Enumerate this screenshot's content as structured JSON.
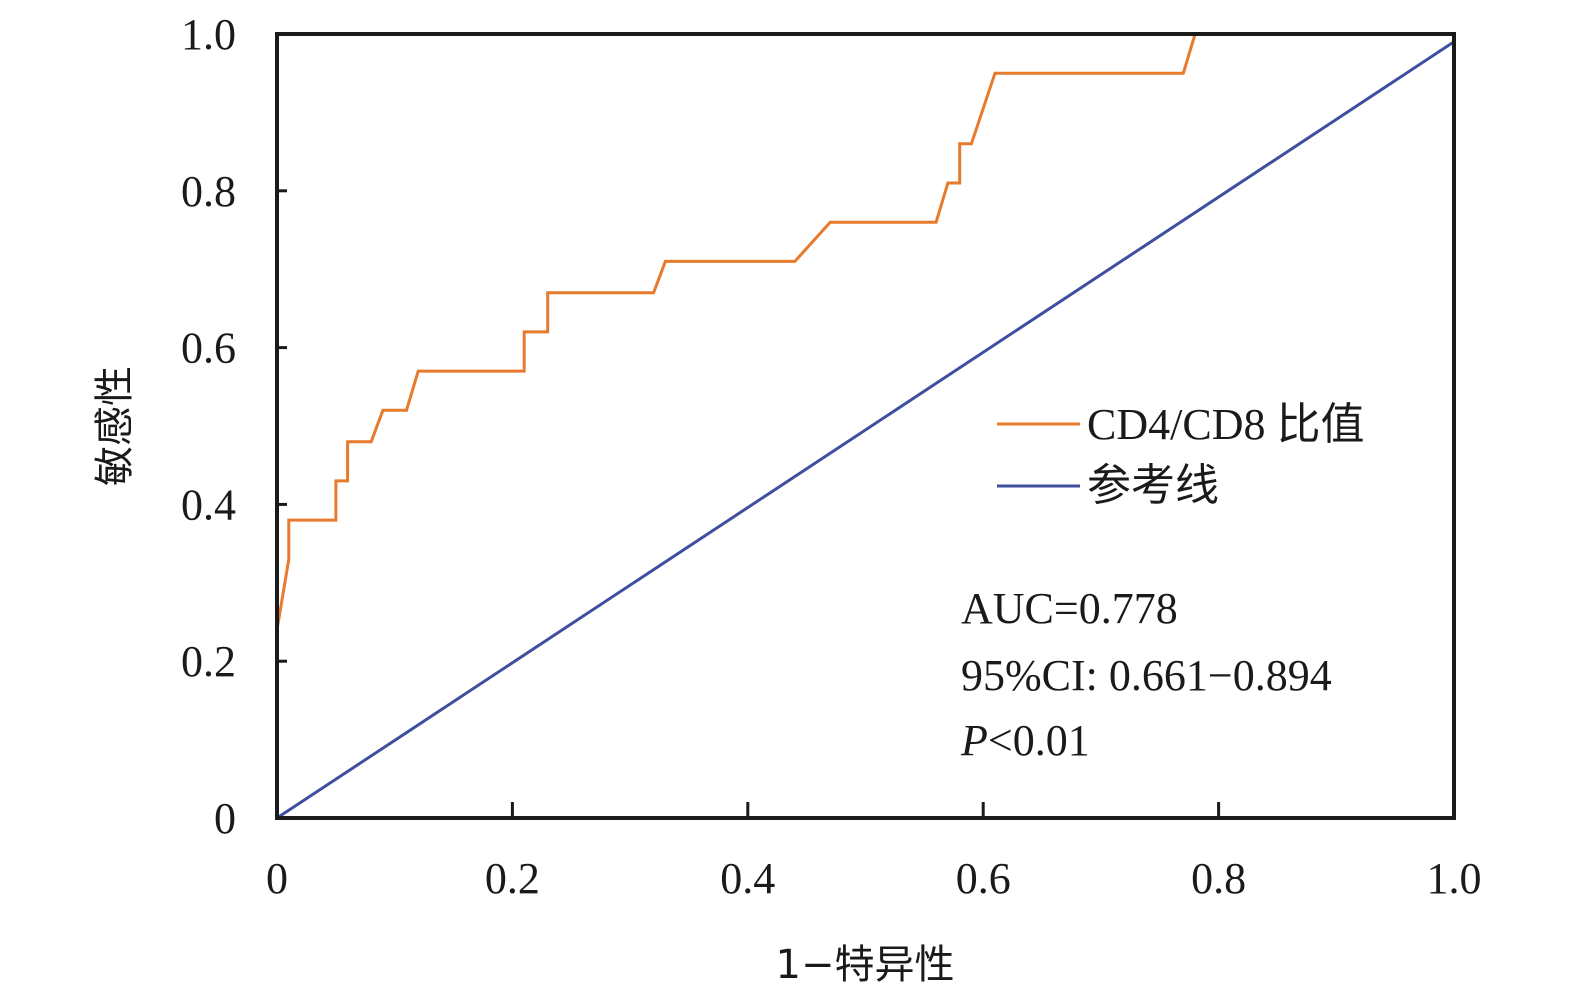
{
  "chart_data": {
    "type": "line",
    "title": "",
    "xlabel": "1−特异性",
    "ylabel": "敏感性",
    "xlim": [
      0,
      1
    ],
    "ylim": [
      0,
      1
    ],
    "x_ticks": [
      "0",
      "0.2",
      "0.4",
      "0.6",
      "0.8",
      "1.0"
    ],
    "y_ticks": [
      "0",
      "0.2",
      "0.4",
      "0.6",
      "0.8",
      "1.0"
    ],
    "grid": false,
    "legend_position": "right",
    "series": [
      {
        "name": "CD4/CD8 比值",
        "color": "#e87a2e",
        "x": [
          0.0,
          0.0,
          0.0,
          0.01,
          0.01,
          0.05,
          0.05,
          0.06,
          0.06,
          0.08,
          0.09,
          0.11,
          0.12,
          0.21,
          0.21,
          0.23,
          0.23,
          0.32,
          0.33,
          0.44,
          0.47,
          0.56,
          0.57,
          0.58,
          0.58,
          0.59,
          0.61,
          0.77,
          0.78,
          1.0
        ],
        "y": [
          0.05,
          0.19,
          0.24,
          0.33,
          0.38,
          0.38,
          0.43,
          0.43,
          0.48,
          0.48,
          0.52,
          0.52,
          0.57,
          0.57,
          0.62,
          0.62,
          0.67,
          0.67,
          0.71,
          0.71,
          0.76,
          0.76,
          0.81,
          0.81,
          0.86,
          0.86,
          0.95,
          0.95,
          1.0,
          1.0
        ]
      },
      {
        "name": "参考线",
        "color": "#3f4f9f",
        "x": [
          0,
          1
        ],
        "y": [
          0,
          0.99
        ]
      }
    ],
    "annotations": [
      {
        "text": "AUC=0.778"
      },
      {
        "text": "95%CI: 0.661−0.894"
      },
      {
        "italic": "P",
        "text": "<0.01"
      }
    ]
  }
}
